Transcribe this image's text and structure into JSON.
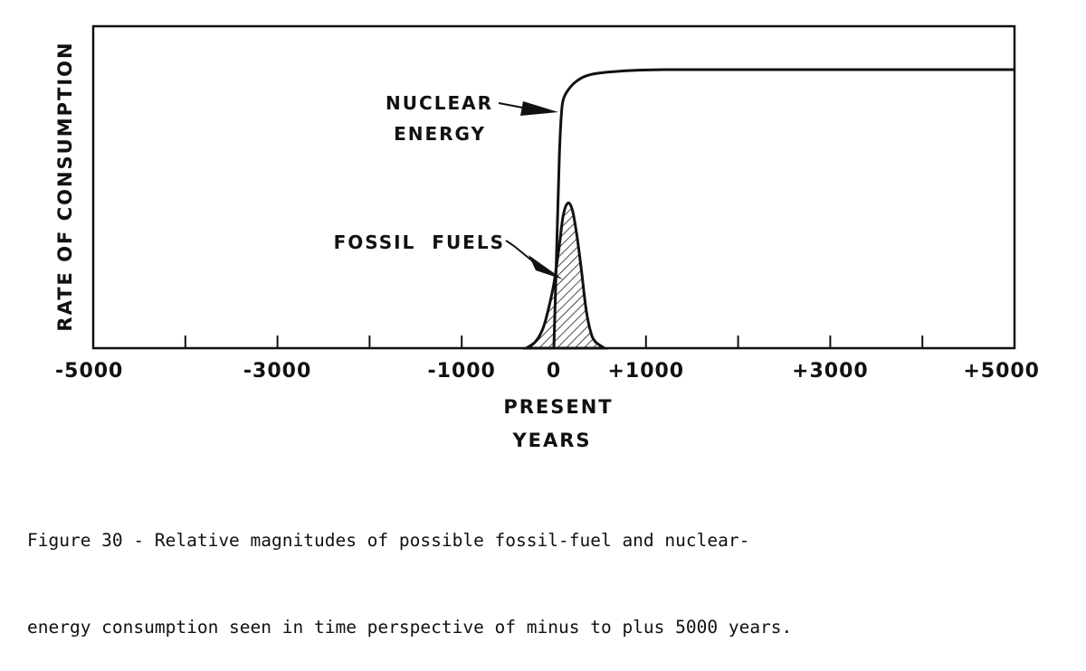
{
  "chart_data": {
    "type": "line",
    "title": "",
    "xlabel": "YEARS",
    "ylabel": "RATE OF CONSUMPTION",
    "xlim": [
      -5000,
      5000
    ],
    "ylim": [
      0,
      1
    ],
    "x_ticks": [
      -5000,
      -4000,
      -3000,
      -2000,
      -1000,
      0,
      1000,
      2000,
      3000,
      4000,
      5000
    ],
    "x_tick_labels": [
      "-5000",
      "-3000",
      "-1000",
      "0",
      "+1000",
      "+3000",
      "+5000"
    ],
    "x_tick_label_values": [
      -5000,
      -3000,
      -1000,
      0,
      1000,
      3000,
      5000
    ],
    "present_label": "PRESENT",
    "grid": false,
    "series": [
      {
        "name": "NUCLEAR ENERGY",
        "style": "line",
        "points": [
          [
            0,
            0
          ],
          [
            30,
            0.3
          ],
          [
            60,
            0.6
          ],
          [
            80,
            0.72
          ],
          [
            100,
            0.77
          ],
          [
            150,
            0.8
          ],
          [
            250,
            0.83
          ],
          [
            400,
            0.85
          ],
          [
            700,
            0.86
          ],
          [
            1200,
            0.865
          ],
          [
            2500,
            0.865
          ],
          [
            5000,
            0.865
          ]
        ]
      },
      {
        "name": "FOSSIL FUELS",
        "style": "hatched-area",
        "points": [
          [
            -300,
            0
          ],
          [
            -200,
            0.02
          ],
          [
            -120,
            0.06
          ],
          [
            -60,
            0.12
          ],
          [
            0,
            0.2
          ],
          [
            60,
            0.32
          ],
          [
            100,
            0.41
          ],
          [
            150,
            0.45
          ],
          [
            200,
            0.43
          ],
          [
            250,
            0.35
          ],
          [
            300,
            0.24
          ],
          [
            350,
            0.12
          ],
          [
            400,
            0.05
          ],
          [
            450,
            0.02
          ],
          [
            550,
            0
          ]
        ]
      }
    ],
    "annotations": [
      {
        "lines": [
          "NUCLEAR",
          "ENERGY"
        ],
        "points_to": "NUCLEAR ENERGY"
      },
      {
        "lines": [
          "FOSSIL  FUELS"
        ],
        "points_to": "FOSSIL FUELS"
      }
    ]
  },
  "caption": {
    "line1": "Figure 30 - Relative magnitudes of possible fossil-fuel and nuclear-",
    "line2": "energy consumption seen in time perspective of minus to plus 5000 years."
  }
}
